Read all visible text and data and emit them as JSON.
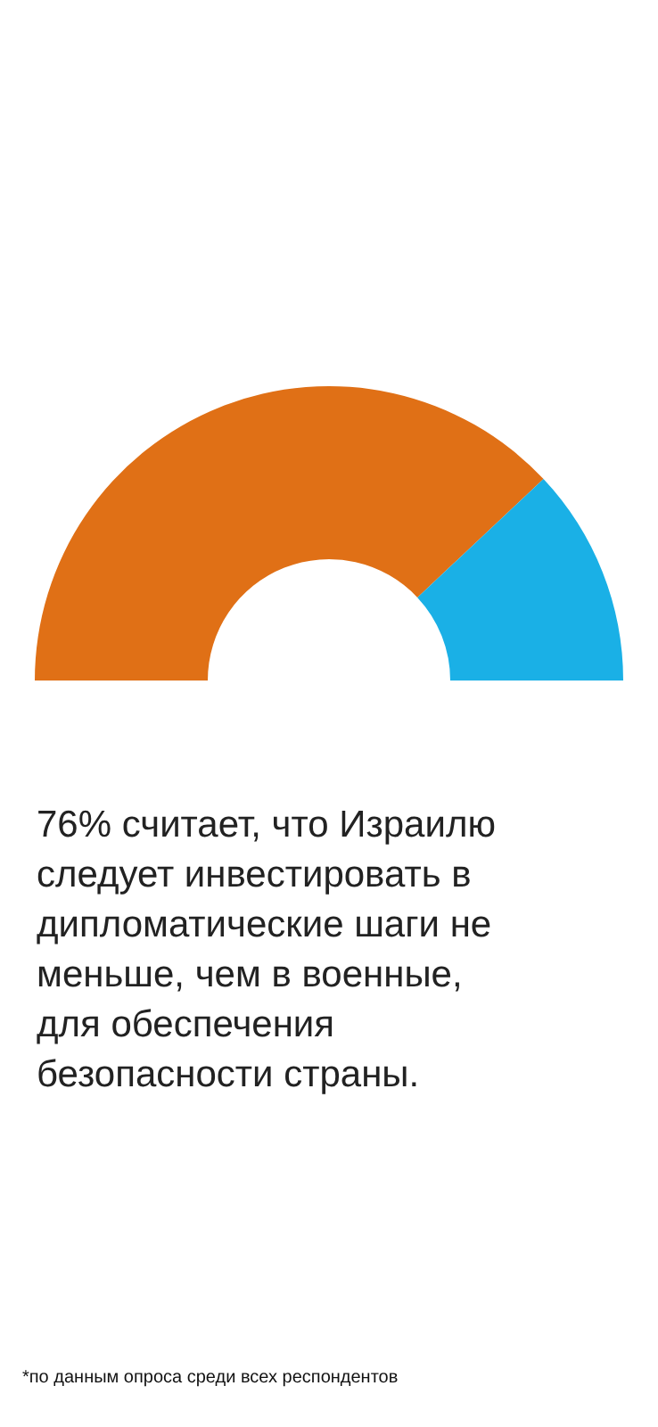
{
  "chart_data": {
    "type": "donut",
    "categories": [
      null,
      null
    ],
    "values": [
      76,
      24
    ],
    "colors": [
      "#e07016",
      "#1ab0e6"
    ],
    "title": "76% считает, что Израилю следует инвестировать в дипломатические шаги не меньше, чем в военные, для обеспечения безопасности страны.",
    "annotations": [
      "*по данным опроса среди всех респондентов"
    ]
  }
}
